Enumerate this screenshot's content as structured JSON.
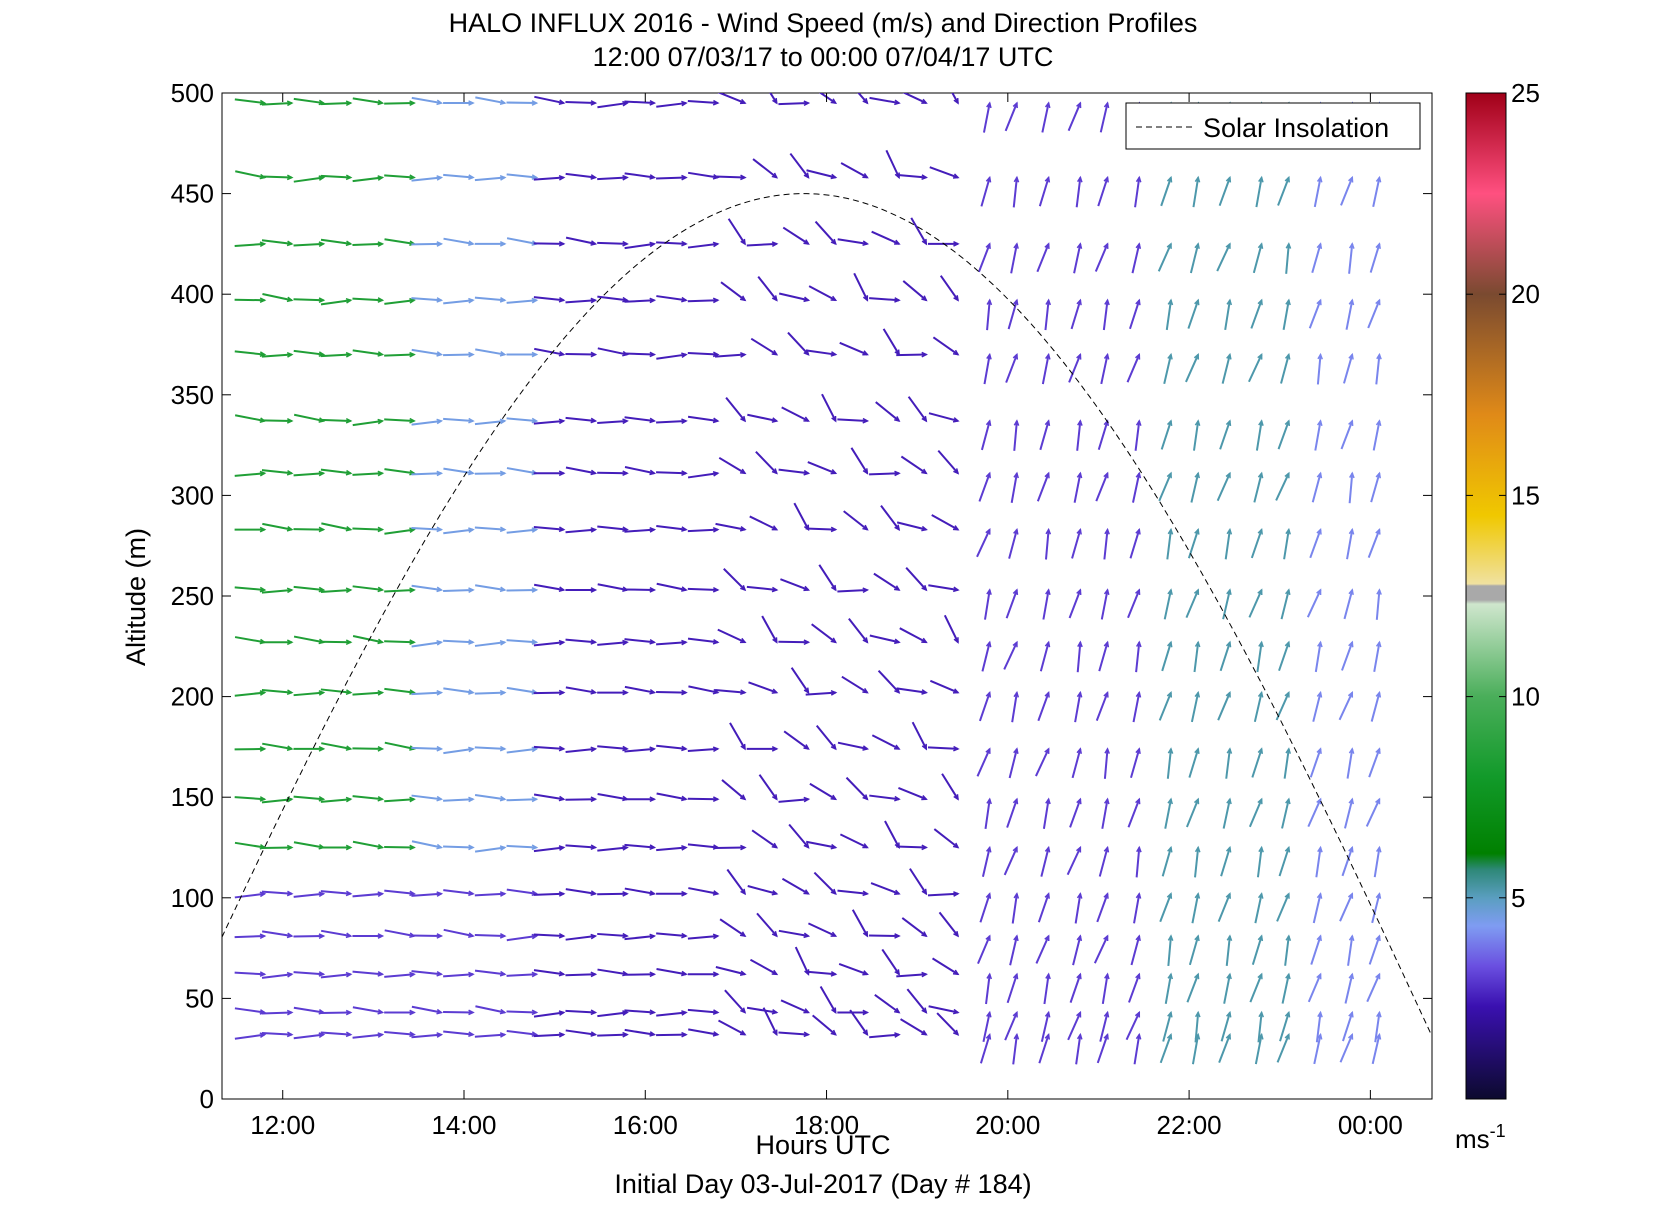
{
  "chart_data": {
    "type": "wind_barb_profile",
    "title": "HALO INFLUX 2016 - Wind Speed (m/s) and Direction Profiles",
    "subtitle": "12:00 07/03/17 to 00:00 07/04/17  UTC",
    "xlabel": "Hours UTC",
    "xlabel2": "Initial Day 03-Jul-2017 (Day # 184)",
    "ylabel": "Altitude (m)",
    "x_tick_labels": [
      "12:00",
      "14:00",
      "16:00",
      "18:00",
      "20:00",
      "22:00",
      "00:00"
    ],
    "x_tick_hours": [
      12,
      14,
      16,
      18,
      20,
      22,
      24
    ],
    "xlim_hours": [
      11.33,
      24.68
    ],
    "ylim": [
      0,
      500
    ],
    "y_ticks": [
      0,
      50,
      100,
      150,
      200,
      250,
      300,
      350,
      400,
      450,
      500
    ],
    "colorbar": {
      "range": [
        0,
        25
      ],
      "ticks": [
        5,
        10,
        15,
        20,
        25
      ],
      "unit_label": "ms",
      "unit_exponent": "-1",
      "stops": [
        {
          "v": 0,
          "color": "#0c0a2e"
        },
        {
          "v": 2.3,
          "color": "#3a10b0"
        },
        {
          "v": 3.3,
          "color": "#6a4fe0"
        },
        {
          "v": 4.3,
          "color": "#7f9cf2"
        },
        {
          "v": 5.0,
          "color": "#5a9ec0"
        },
        {
          "v": 5.7,
          "color": "#2e8878"
        },
        {
          "v": 6.1,
          "color": "#008000"
        },
        {
          "v": 8.0,
          "color": "#129a2a"
        },
        {
          "v": 10.0,
          "color": "#4aae5a"
        },
        {
          "v": 12.3,
          "color": "#cfe6cd"
        },
        {
          "v": 12.4,
          "color": "#a9a9a9"
        },
        {
          "v": 12.75,
          "color": "#a9a9a9"
        },
        {
          "v": 12.8,
          "color": "#f0e1a0"
        },
        {
          "v": 14.5,
          "color": "#f0c800"
        },
        {
          "v": 17.0,
          "color": "#e08a18"
        },
        {
          "v": 20.0,
          "color": "#7a4a30"
        },
        {
          "v": 22.5,
          "color": "#ff5080"
        },
        {
          "v": 25.0,
          "color": "#a00018"
        }
      ]
    },
    "legend": {
      "entries": [
        "Solar Insolation"
      ],
      "position": "top-right"
    },
    "solar_insolation": {
      "style": "dashed",
      "color": "#000000",
      "peak_hour": 17.75,
      "peak_altitude": 450,
      "half_width_hours": 7.25
    },
    "altitude_levels_m": [
      32,
      43,
      62,
      81,
      102,
      125,
      149,
      174,
      202,
      227,
      253,
      283,
      311,
      337,
      370,
      397,
      425,
      458,
      495
    ],
    "times_hours": [
      11.8,
      12.1,
      12.45,
      12.75,
      13.1,
      13.45,
      13.75,
      14.1,
      14.45,
      14.8,
      15.1,
      15.45,
      15.8,
      16.1,
      16.45,
      16.8,
      17.1,
      17.45,
      17.8,
      18.1,
      18.45,
      18.8,
      19.1,
      19.45,
      19.8,
      20.1,
      20.45,
      20.8,
      21.1,
      21.45,
      21.8,
      22.1,
      22.45,
      22.8,
      23.1,
      23.45,
      23.8,
      24.1
    ],
    "direction_regimes": [
      {
        "from_hour": 11.8,
        "to_hour": 16.9,
        "direction_deg": 272,
        "note": "westerly"
      },
      {
        "from_hour": 16.9,
        "to_hour": 19.6,
        "direction_deg": 300,
        "note": "northwesterly, turning"
      },
      {
        "from_hour": 19.6,
        "to_hour": 24.2,
        "direction_deg": 195,
        "note": "southerly to south-southwesterly"
      }
    ],
    "speed_regimes_ms": [
      {
        "from_hour": 11.8,
        "to_hour": 13.5,
        "altitude_above_m": 120,
        "speed": 8.5
      },
      {
        "from_hour": 13.5,
        "to_hour": 15.0,
        "altitude_above_m": 120,
        "speed": 4.5
      },
      {
        "from_hour": 15.0,
        "to_hour": 19.6,
        "speed": 2.5
      },
      {
        "from_hour": 19.6,
        "to_hour": 21.6,
        "speed": 3.0
      },
      {
        "from_hour": 21.6,
        "to_hour": 23.4,
        "speed": 5.2
      },
      {
        "from_hour": 23.4,
        "to_hour": 24.2,
        "speed": 4.0
      }
    ]
  }
}
